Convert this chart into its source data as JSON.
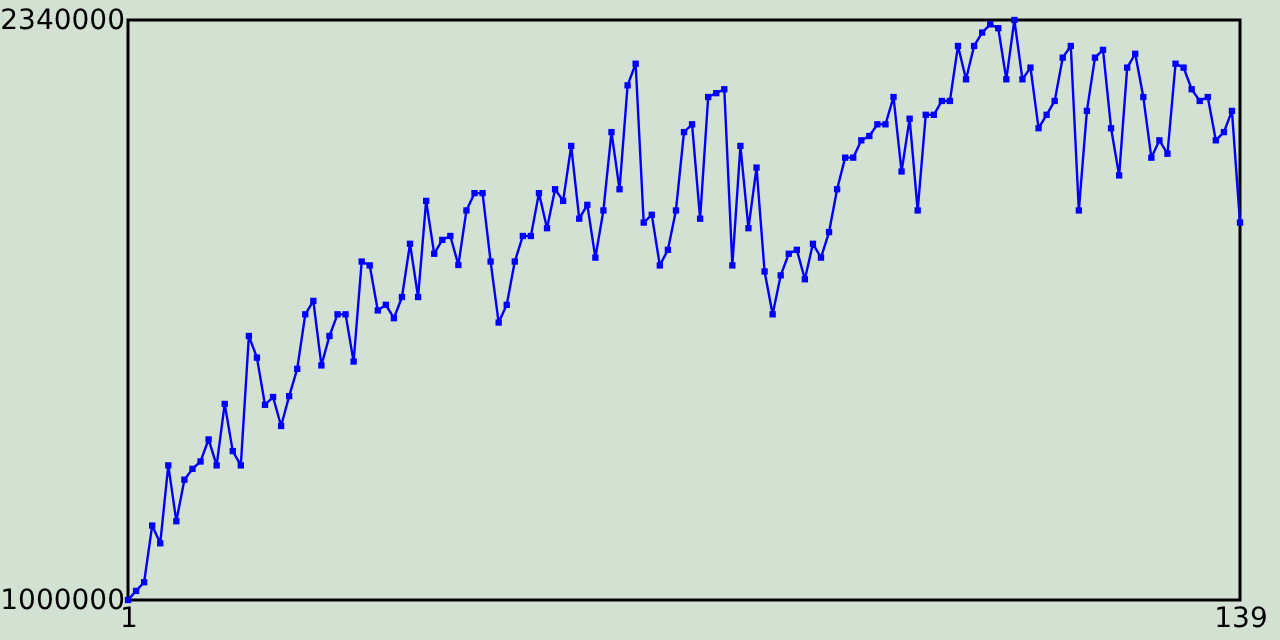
{
  "chart_data": {
    "type": "line",
    "marker": "square",
    "grid": false,
    "xlim": [
      1,
      139
    ],
    "xticks": [
      1,
      139
    ],
    "ylim": [
      1000000,
      2340000
    ],
    "yticks": [
      1000000,
      2340000
    ],
    "x": [
      1,
      2,
      3,
      4,
      5,
      6,
      7,
      8,
      9,
      10,
      11,
      12,
      13,
      14,
      15,
      16,
      17,
      18,
      19,
      20,
      21,
      22,
      23,
      24,
      25,
      26,
      27,
      28,
      29,
      30,
      31,
      32,
      33,
      34,
      35,
      36,
      37,
      38,
      39,
      40,
      41,
      42,
      43,
      44,
      45,
      46,
      47,
      48,
      49,
      50,
      51,
      52,
      53,
      54,
      55,
      56,
      57,
      58,
      59,
      60,
      61,
      62,
      63,
      64,
      65,
      66,
      67,
      68,
      69,
      70,
      71,
      72,
      73,
      74,
      75,
      76,
      77,
      78,
      79,
      80,
      81,
      82,
      83,
      84,
      85,
      86,
      87,
      88,
      89,
      90,
      91,
      92,
      93,
      94,
      95,
      96,
      97,
      98,
      99,
      100,
      101,
      102,
      103,
      104,
      105,
      106,
      107,
      108,
      109,
      110,
      111,
      112,
      113,
      114,
      115,
      116,
      117,
      118,
      119,
      120,
      121,
      122,
      123,
      124,
      125,
      126,
      127,
      128,
      129,
      130,
      131,
      132,
      133,
      134,
      135,
      136,
      137,
      138,
      139
    ],
    "series": [
      {
        "color": "#0000ff",
        "values": [
          1000000,
          1021000,
          1041000,
          1172000,
          1131000,
          1311000,
          1182000,
          1278000,
          1303000,
          1320000,
          1371000,
          1311000,
          1453000,
          1344000,
          1311000,
          1610000,
          1560000,
          1451000,
          1469000,
          1402000,
          1471000,
          1534000,
          1660000,
          1691000,
          1542000,
          1610000,
          1660000,
          1660000,
          1551000,
          1782000,
          1773000,
          1669000,
          1682000,
          1651000,
          1700000,
          1823000,
          1700000,
          1922000,
          1800000,
          1832000,
          1841000,
          1774000,
          1900000,
          1940000,
          1940000,
          1782000,
          1641000,
          1682000,
          1782000,
          1841000,
          1841000,
          1940000,
          1859000,
          1949000,
          1922000,
          2049000,
          1881000,
          1913000,
          1791000,
          1900000,
          2081000,
          1949000,
          2189000,
          2239000,
          1872000,
          1890000,
          1773000,
          1809000,
          1900000,
          2081000,
          2099000,
          1881000,
          2162000,
          2171000,
          2180000,
          1773000,
          2049000,
          1859000,
          1999000,
          1759000,
          1660000,
          1750000,
          1800000,
          1809000,
          1741000,
          1823000,
          1791000,
          1850000,
          1949000,
          2022000,
          2022000,
          2062000,
          2072000,
          2099000,
          2099000,
          2162000,
          1990000,
          2112000,
          1900000,
          2121000,
          2121000,
          2153000,
          2153000,
          2280000,
          2203000,
          2280000,
          2311000,
          2330000,
          2321000,
          2203000,
          2340000,
          2203000,
          2230000,
          2090000,
          2121000,
          2153000,
          2253000,
          2280000,
          1900000,
          2130000,
          2253000,
          2271000,
          2090000,
          1981000,
          2230000,
          2262000,
          2162000,
          2022000,
          2062000,
          2031000,
          2239000,
          2230000,
          2180000,
          2153000,
          2162000,
          2062000,
          2081000,
          2130000,
          1872000
        ]
      }
    ]
  }
}
